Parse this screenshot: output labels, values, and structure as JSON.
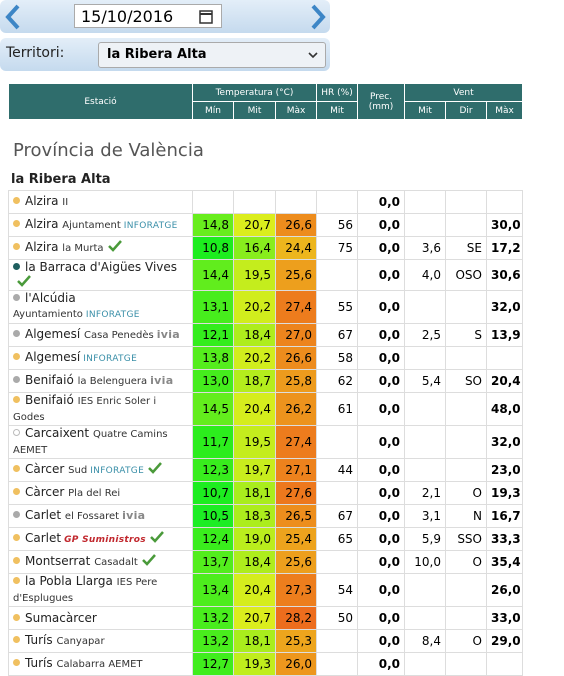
{
  "header": {
    "date": "15/10/2016",
    "territoryLabel": "Territori:",
    "territory": "la Ribera Alta"
  },
  "table": {
    "groups": [
      {
        "label": "Estació"
      },
      {
        "label": "Temperatura (°C)",
        "sub": [
          "Mín",
          "Mit",
          "Màx"
        ]
      },
      {
        "label": "HR (%)",
        "sub": [
          "Mit"
        ]
      },
      {
        "label": "Prec. (mm)"
      },
      {
        "label": "Vent",
        "sub": [
          "Mit",
          "Dir",
          "Màx"
        ]
      }
    ],
    "province": "Província de València",
    "region": "la Ribera Alta",
    "rows": [
      {
        "name": "Alzira",
        "detail": "II",
        "dot": "#f0c060",
        "values": [
          null,
          null,
          null,
          null,
          "0,0",
          null,
          null,
          null
        ]
      },
      {
        "name": "Alzira",
        "detail": "Ajuntament",
        "brand": "INFORATGE",
        "dot": "#f0c060",
        "values": [
          "14,8",
          "20,7",
          "26,6",
          "56",
          "0,0",
          null,
          null,
          "30,0"
        ]
      },
      {
        "name": "Alzira",
        "detail": "la Murta",
        "check": true,
        "dot": "#f0c060",
        "values": [
          "10,8",
          "16,4",
          "24,4",
          "75",
          "0,0",
          "3,6",
          "SE",
          "17,2"
        ]
      },
      {
        "name": "la Barraca d'Aigües Vives",
        "check": true,
        "dot": "#1f5f5f",
        "values": [
          "14,4",
          "19,5",
          "25,6",
          null,
          "0,0",
          "4,0",
          "OSO",
          "30,6"
        ]
      },
      {
        "name": "l'Alcúdia",
        "detail": "Ayuntamiento",
        "brand": "INFORATGE",
        "dot": "#aaaaaa",
        "values": [
          "13,1",
          "20,2",
          "27,4",
          "55",
          "0,0",
          null,
          null,
          "32,0"
        ]
      },
      {
        "name": "Algemesí",
        "detail": "Casa Penedès",
        "brand": "ivia",
        "dot": "#aaaaaa",
        "values": [
          "12,1",
          "18,4",
          "27,0",
          "67",
          "0,0",
          "2,5",
          "S",
          "13,9"
        ]
      },
      {
        "name": "Algemesí",
        "brand": "INFORATGE",
        "dot": "#f0c060",
        "values": [
          "13,8",
          "20,2",
          "26,6",
          "58",
          "0,0",
          null,
          null,
          null
        ]
      },
      {
        "name": "Benifaió",
        "detail": "la Belenguera",
        "brand": "ivia",
        "dot": "#aaaaaa",
        "values": [
          "13,0",
          "18,7",
          "25,8",
          "62",
          "0,0",
          "5,4",
          "SO",
          "20,4"
        ]
      },
      {
        "name": "Benifaió",
        "detail": "IES Enric Soler i Godes",
        "dot": "#f0c060",
        "values": [
          "14,5",
          "20,4",
          "26,2",
          "61",
          "0,0",
          null,
          null,
          "48,0"
        ]
      },
      {
        "name": "Carcaixent",
        "detail": "Quatre Camins AEMET",
        "dot": "#ffffff",
        "values": [
          "11,7",
          "19,5",
          "27,4",
          null,
          "0,0",
          null,
          null,
          "32,0"
        ]
      },
      {
        "name": "Càrcer",
        "detail": "Sud",
        "brand": "INFORATGE",
        "check": true,
        "dot": "#f0c060",
        "values": [
          "12,3",
          "19,7",
          "27,1",
          "44",
          "0,0",
          null,
          null,
          "23,0"
        ]
      },
      {
        "name": "Càrcer",
        "detail": "Pla del Rei",
        "dot": "#f0c060",
        "values": [
          "10,7",
          "18,1",
          "27,6",
          null,
          "0,0",
          "2,1",
          "O",
          "19,3"
        ]
      },
      {
        "name": "Carlet",
        "detail": "el Fossaret",
        "brand": "ivia",
        "dot": "#aaaaaa",
        "values": [
          "10,5",
          "18,3",
          "26,5",
          "67",
          "0,0",
          "3,1",
          "N",
          "16,7"
        ]
      },
      {
        "name": "Carlet",
        "brand": "GP Suministros",
        "check": true,
        "dot": "#f0c060",
        "values": [
          "12,4",
          "19,0",
          "25,4",
          "65",
          "0,0",
          "5,9",
          "SSO",
          "33,3"
        ]
      },
      {
        "name": "Montserrat",
        "detail": "Casadalt",
        "check": true,
        "dot": "#f0c060",
        "values": [
          "13,7",
          "18,4",
          "25,6",
          null,
          "0,0",
          "10,0",
          "O",
          "35,4"
        ]
      },
      {
        "name": "la Pobla Llarga",
        "detail": "IES Pere d'Esplugues",
        "dot": "#f0c060",
        "values": [
          "13,4",
          "20,4",
          "27,3",
          "54",
          "0,0",
          null,
          null,
          "26,0"
        ]
      },
      {
        "name": "Sumacàrcer",
        "dot": "#f0c060",
        "values": [
          "13,2",
          "20,7",
          "28,2",
          "50",
          "0,0",
          null,
          null,
          "33,0"
        ]
      },
      {
        "name": "Turís",
        "detail": "Canyapar",
        "dot": "#f0c060",
        "values": [
          "13,2",
          "18,1",
          "25,3",
          null,
          "0,0",
          "8,4",
          "O",
          "29,0"
        ]
      },
      {
        "name": "Turís",
        "detail": "Calabarra AEMET",
        "dot": "#f0c060",
        "values": [
          "12,7",
          "19,3",
          "26,0",
          null,
          "0,0",
          null,
          null,
          null
        ]
      }
    ]
  }
}
